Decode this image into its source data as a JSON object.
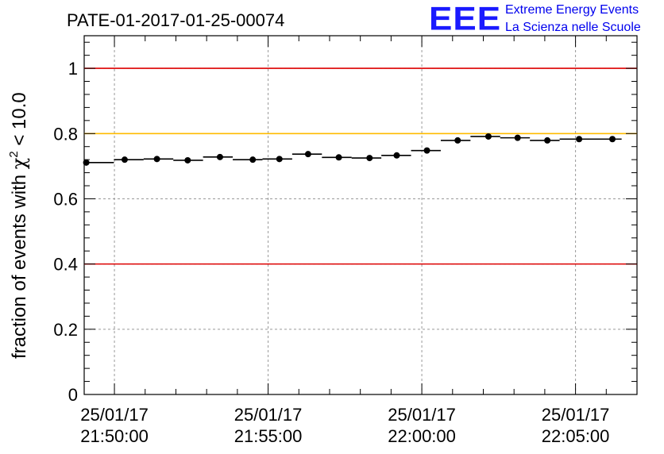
{
  "chart_data": {
    "type": "scatter",
    "title": "PATE-01-2017-01-25-00074",
    "ylabel_prefix": "fraction of events with ",
    "ylabel_symbol": "χ",
    "ylabel_sup": "2",
    "ylabel_suffix": " < 10.0",
    "xlabel": "",
    "x_unit": "time",
    "ylim": [
      0,
      1.1
    ],
    "xlim": [
      "21:49:01",
      "22:07:00"
    ],
    "x_ticks": [
      {
        "time": "21:50:00",
        "date": "25/01/17",
        "clock": "21:50:00"
      },
      {
        "time": "21:55:00",
        "date": "25/01/17",
        "clock": "21:55:00"
      },
      {
        "time": "22:00:00",
        "date": "25/01/17",
        "clock": "22:00:00"
      },
      {
        "time": "22:05:00",
        "date": "25/01/17",
        "clock": "22:05:00"
      }
    ],
    "y_ticks": [
      "0",
      "0.2",
      "0.4",
      "0.6",
      "0.8",
      "1"
    ],
    "y_tick_values": [
      0,
      0.2,
      0.4,
      0.6,
      0.8,
      1.0
    ],
    "grid": true,
    "reference_lines": [
      {
        "y": 1.0,
        "color": "#dd0000"
      },
      {
        "y": 0.8,
        "color": "#ffbb00"
      },
      {
        "y": 0.4,
        "color": "#dd0000"
      }
    ],
    "points": [
      {
        "x": "21:49:05",
        "y": 0.711,
        "x_start": "21:49:01",
        "x_end": "21:49:59"
      },
      {
        "x": "21:50:20",
        "y": 0.72,
        "x_start": "21:49:59",
        "x_end": "21:50:57"
      },
      {
        "x": "21:51:23",
        "y": 0.722,
        "x_start": "21:50:57",
        "x_end": "21:51:55"
      },
      {
        "x": "21:52:23",
        "y": 0.718,
        "x_start": "21:51:55",
        "x_end": "21:52:53"
      },
      {
        "x": "21:53:26",
        "y": 0.728,
        "x_start": "21:52:53",
        "x_end": "21:53:51"
      },
      {
        "x": "21:54:30",
        "y": 0.72,
        "x_start": "21:53:51",
        "x_end": "21:54:49"
      },
      {
        "x": "21:55:22",
        "y": 0.722,
        "x_start": "21:54:49",
        "x_end": "21:55:47"
      },
      {
        "x": "21:56:18",
        "y": 0.737,
        "x_start": "21:55:47",
        "x_end": "21:56:45"
      },
      {
        "x": "21:57:18",
        "y": 0.727,
        "x_start": "21:56:45",
        "x_end": "21:57:43"
      },
      {
        "x": "21:58:18",
        "y": 0.725,
        "x_start": "21:57:43",
        "x_end": "21:58:41"
      },
      {
        "x": "21:59:11",
        "y": 0.733,
        "x_start": "21:58:41",
        "x_end": "21:59:39"
      },
      {
        "x": "22:00:10",
        "y": 0.748,
        "x_start": "21:59:39",
        "x_end": "22:00:37"
      },
      {
        "x": "22:01:10",
        "y": 0.779,
        "x_start": "22:00:37",
        "x_end": "22:01:35"
      },
      {
        "x": "22:02:10",
        "y": 0.791,
        "x_start": "22:01:35",
        "x_end": "22:02:33"
      },
      {
        "x": "22:03:07",
        "y": 0.787,
        "x_start": "22:02:33",
        "x_end": "22:03:31"
      },
      {
        "x": "22:04:05",
        "y": 0.779,
        "x_start": "22:03:31",
        "x_end": "22:04:29"
      },
      {
        "x": "22:05:07",
        "y": 0.783,
        "x_start": "22:04:29",
        "x_end": "22:05:27"
      },
      {
        "x": "22:06:12",
        "y": 0.783,
        "x_start": "22:05:27",
        "x_end": "22:06:30"
      }
    ]
  },
  "logo": {
    "mark": "EEE",
    "line1": "Extreme Energy Events",
    "line2": "La Scienza nelle Scuole",
    "color": "#1a1aff"
  }
}
